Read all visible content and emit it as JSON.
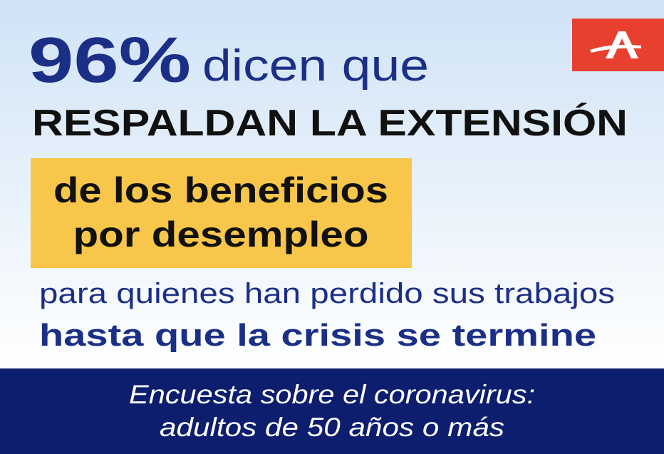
{
  "header": {
    "percent": "96%",
    "lead": "dicen que",
    "headline": "RESPALDAN LA EXTENSIÓN"
  },
  "highlight": {
    "lines": [
      "de los beneficios",
      "por desempleo"
    ]
  },
  "body": {
    "lines": [
      "para quienes han perdido sus trabajos",
      "hasta que la crisis se termine"
    ]
  },
  "footer": {
    "lines": [
      "Encuesta sobre el coronavirus:",
      "adultos de 50 años o más"
    ]
  }
}
